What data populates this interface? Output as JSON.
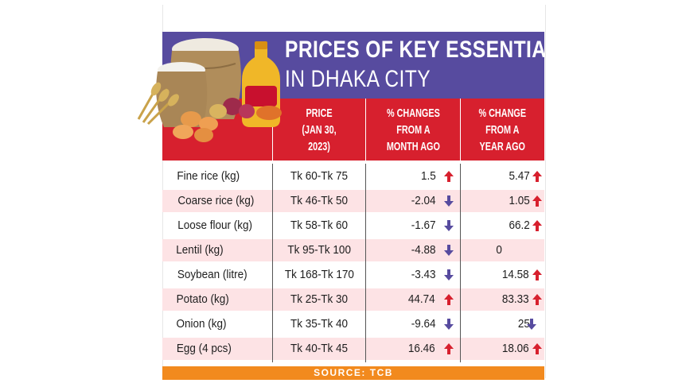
{
  "title": {
    "line1": "PRICES OF KEY ESSENTIALS",
    "line2": "IN DHAKA CITY"
  },
  "columns": [
    {
      "key": "item",
      "lines": []
    },
    {
      "key": "price",
      "lines": [
        "PRICE",
        "(JAN 30,",
        "2023)"
      ]
    },
    {
      "key": "month_change",
      "lines": [
        "% CHANGES",
        "FROM A",
        "MONTH AGO"
      ]
    },
    {
      "key": "year_change",
      "lines": [
        "% CHANGE",
        "FROM A",
        "YEAR AGO"
      ]
    }
  ],
  "source": "SOURCE: TCB",
  "colors": {
    "title_band": "#574b9f",
    "header_band": "#d7202e",
    "row_shade": "#fde3e5",
    "up_arrow": "#d7202e",
    "down_arrow": "#574b9f",
    "source_band": "#f28a1e"
  },
  "chart_data": {
    "type": "table",
    "headers": [
      "",
      "PRICE (JAN 30, 2023)",
      "% CHANGES FROM A MONTH AGO",
      "% CHANGE FROM A YEAR AGO"
    ],
    "rows": [
      {
        "item": "Fine rice (kg)",
        "price": "Tk 60-Tk 75",
        "month_change": "1.5",
        "month_dir": "up",
        "year_change": "5.47",
        "year_dir": "up"
      },
      {
        "item": "Coarse rice (kg)",
        "price": "Tk 46-Tk 50",
        "month_change": "-2.04",
        "month_dir": "down",
        "year_change": "1.05",
        "year_dir": "up"
      },
      {
        "item": "Loose flour (kg)",
        "price": "Tk 58-Tk 60",
        "month_change": "-1.67",
        "month_dir": "down",
        "year_change": "66.2",
        "year_dir": "up"
      },
      {
        "item": "Lentil (kg)",
        "price": "Tk 95-Tk 100",
        "month_change": "-4.88",
        "month_dir": "down",
        "year_change": "0",
        "year_dir": "none"
      },
      {
        "item": "Soybean (litre)",
        "price": "Tk 168-Tk 170",
        "month_change": "-3.43",
        "month_dir": "down",
        "year_change": "14.58",
        "year_dir": "up"
      },
      {
        "item": "Potato (kg)",
        "price": "Tk 25-Tk 30",
        "month_change": "44.74",
        "month_dir": "up",
        "year_change": "83.33",
        "year_dir": "up"
      },
      {
        "item": "Onion (kg)",
        "price": "Tk 35-Tk 40",
        "month_change": "-9.64",
        "month_dir": "down",
        "year_change": "25",
        "year_dir": "down"
      },
      {
        "item": "Egg (4 pcs)",
        "price": "Tk 40-Tk 45",
        "month_change": "16.46",
        "month_dir": "up",
        "year_change": "18.06",
        "year_dir": "up"
      }
    ]
  }
}
